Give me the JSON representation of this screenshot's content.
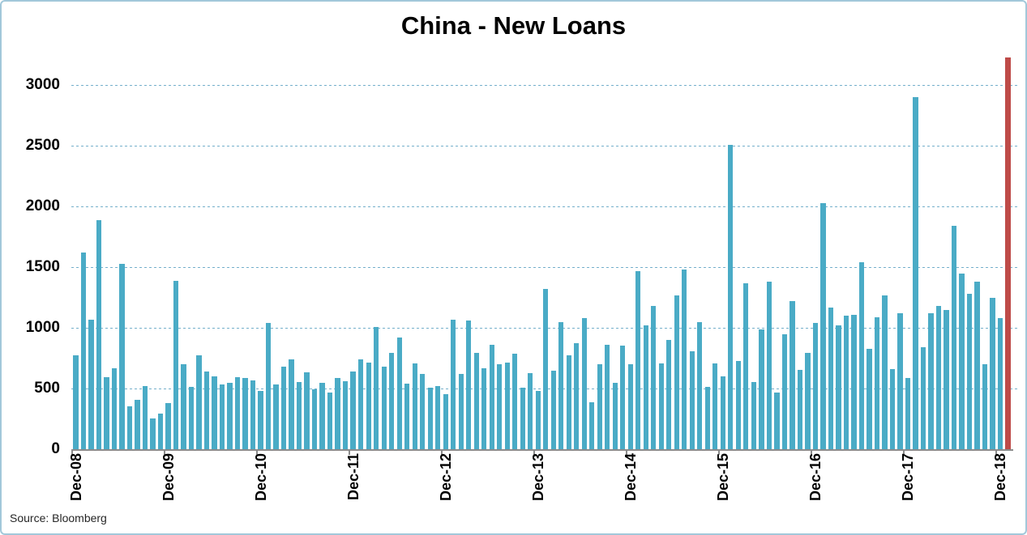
{
  "title": "China - New Loans",
  "source_note": "Source: Bloomberg",
  "colors": {
    "bar": "#4AABC6",
    "highlight_bar": "#BE4B48",
    "gridline": "#74AFCB",
    "axis": "#8C8C8C",
    "frame_border": "#A2C8DA",
    "text": "#000000"
  },
  "chart_data": {
    "type": "bar",
    "title": "China - New Loans",
    "xlabel": "",
    "ylabel": "",
    "ylim": [
      0,
      3300
    ],
    "yticks": [
      0,
      500,
      1000,
      1500,
      2000,
      2500,
      3000
    ],
    "grid": "dashed-horizontal",
    "x_tick_labels": [
      "Dec-08",
      "Dec-09",
      "Dec-10",
      "Dec-11",
      "Dec-12",
      "Dec-13",
      "Dec-14",
      "Dec-15",
      "Dec-16",
      "Dec-17",
      "Dec-18"
    ],
    "x_tick_every": 12,
    "highlight_index": 121,
    "x": [
      "Dec-08",
      "Jan-09",
      "Feb-09",
      "Mar-09",
      "Apr-09",
      "May-09",
      "Jun-09",
      "Jul-09",
      "Aug-09",
      "Sep-09",
      "Oct-09",
      "Nov-09",
      "Dec-09",
      "Jan-10",
      "Feb-10",
      "Mar-10",
      "Apr-10",
      "May-10",
      "Jun-10",
      "Jul-10",
      "Aug-10",
      "Sep-10",
      "Oct-10",
      "Nov-10",
      "Dec-10",
      "Jan-11",
      "Feb-11",
      "Mar-11",
      "Apr-11",
      "May-11",
      "Jun-11",
      "Jul-11",
      "Aug-11",
      "Sep-11",
      "Oct-11",
      "Nov-11",
      "Dec-11",
      "Jan-12",
      "Feb-12",
      "Mar-12",
      "Apr-12",
      "May-12",
      "Jun-12",
      "Jul-12",
      "Aug-12",
      "Sep-12",
      "Oct-12",
      "Nov-12",
      "Dec-12",
      "Jan-13",
      "Feb-13",
      "Mar-13",
      "Apr-13",
      "May-13",
      "Jun-13",
      "Jul-13",
      "Aug-13",
      "Sep-13",
      "Oct-13",
      "Nov-13",
      "Dec-13",
      "Jan-14",
      "Feb-14",
      "Mar-14",
      "Apr-14",
      "May-14",
      "Jun-14",
      "Jul-14",
      "Aug-14",
      "Sep-14",
      "Oct-14",
      "Nov-14",
      "Dec-14",
      "Jan-15",
      "Feb-15",
      "Mar-15",
      "Apr-15",
      "May-15",
      "Jun-15",
      "Jul-15",
      "Aug-15",
      "Sep-15",
      "Oct-15",
      "Nov-15",
      "Dec-15",
      "Jan-16",
      "Feb-16",
      "Mar-16",
      "Apr-16",
      "May-16",
      "Jun-16",
      "Jul-16",
      "Aug-16",
      "Sep-16",
      "Oct-16",
      "Nov-16",
      "Dec-16",
      "Jan-17",
      "Feb-17",
      "Mar-17",
      "Apr-17",
      "May-17",
      "Jun-17",
      "Jul-17",
      "Aug-17",
      "Sep-17",
      "Oct-17",
      "Nov-17",
      "Dec-17",
      "Jan-18",
      "Feb-18",
      "Mar-18",
      "Apr-18",
      "May-18",
      "Jun-18",
      "Jul-18",
      "Aug-18",
      "Sep-18",
      "Oct-18",
      "Nov-18",
      "Dec-18",
      "Jan-19"
    ],
    "values": [
      772,
      1620,
      1070,
      1890,
      592,
      665,
      1530,
      356,
      410,
      517,
      253,
      295,
      380,
      1390,
      700,
      511,
      774,
      639,
      603,
      533,
      545,
      596,
      588,
      564,
      481,
      1040,
      536,
      679,
      740,
      552,
      634,
      493,
      549,
      470,
      587,
      562,
      641,
      738,
      711,
      1010,
      682,
      793,
      920,
      540,
      704,
      623,
      505,
      523,
      454,
      1070,
      620,
      1060,
      793,
      667,
      861,
      700,
      711,
      787,
      506,
      625,
      483,
      1320,
      645,
      1050,
      775,
      871,
      1080,
      385,
      703,
      857,
      548,
      853,
      697,
      1470,
      1020,
      1180,
      708,
      901,
      1270,
      1480,
      810,
      1050,
      514,
      709,
      598,
      2510,
      727,
      1370,
      556,
      986,
      1380,
      464,
      949,
      1220,
      651,
      795,
      1040,
      2030,
      1170,
      1020,
      1100,
      1110,
      1540,
      826,
      1090,
      1270,
      663,
      1120,
      584,
      2900,
      839,
      1120,
      1180,
      1150,
      1840,
      1450,
      1280,
      1380,
      697,
      1250,
      1080,
      3230
    ]
  }
}
